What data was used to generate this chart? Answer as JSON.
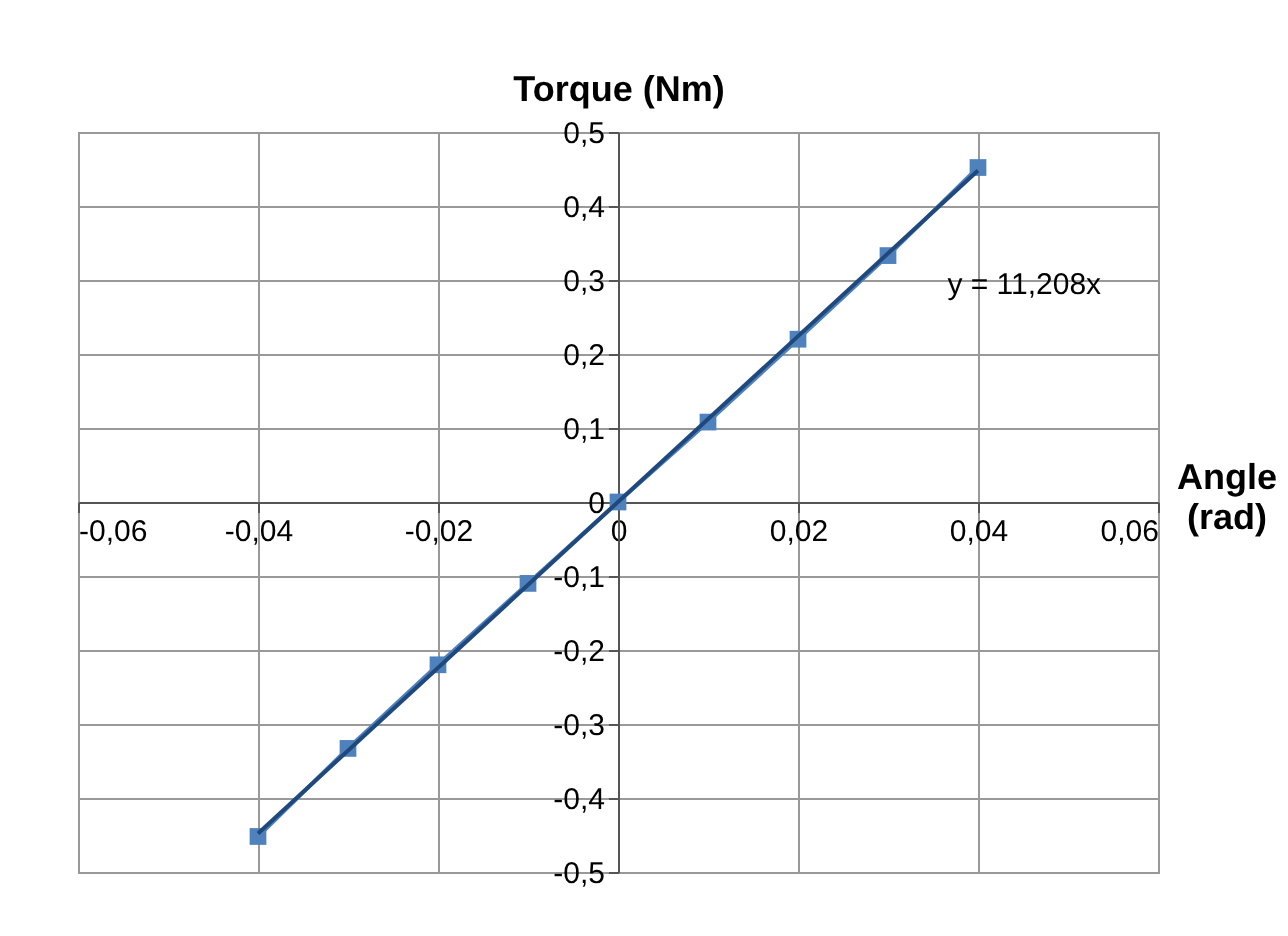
{
  "chart_data": {
    "type": "line",
    "xlabel": "Angle (rad)",
    "ylabel": "Torque (Nm)",
    "x": [
      -0.04,
      -0.03,
      -0.02,
      -0.01,
      0,
      0.01,
      0.02,
      0.03,
      0.04
    ],
    "series": [
      {
        "color": "#4f81bd",
        "marker": "square",
        "values": [
          -0.452,
          -0.333,
          -0.22,
          -0.11,
          0,
          0.108,
          0.22,
          0.333,
          0.452
        ]
      },
      {
        "color": "#1f497d",
        "marker": "none",
        "x": [
          -0.04,
          0.04
        ],
        "values": [
          -0.448,
          0.448
        ]
      }
    ],
    "annotations": [
      "y = 11,208x"
    ],
    "xlim": [
      -0.06,
      0.06
    ],
    "xticks": [
      {
        "value": -0.06,
        "label": "-0,06"
      },
      {
        "value": -0.04,
        "label": "-0,04"
      },
      {
        "value": -0.02,
        "label": "-0,02"
      },
      0,
      {
        "value": 0.02,
        "label": "0,02"
      },
      {
        "value": 0.04,
        "label": "0,04"
      },
      {
        "value": 0.06,
        "label": "0,06"
      }
    ],
    "ylim": [
      -0.5,
      0.5
    ],
    "yticks": [
      {
        "value": -0.5,
        "label": "-0,5"
      },
      {
        "value": -0.4,
        "label": "-0,4"
      },
      {
        "value": -0.3,
        "label": "-0,3"
      },
      {
        "value": -0.2,
        "label": "-0,2"
      },
      {
        "value": -0.1,
        "label": "-0,1"
      },
      0,
      {
        "value": 0.1,
        "label": "0,1"
      },
      {
        "value": 0.2,
        "label": "0,2"
      },
      {
        "value": 0.3,
        "label": "0,3"
      },
      {
        "value": 0.4,
        "label": "0,4"
      },
      {
        "value": 0.5,
        "label": "0,5"
      }
    ],
    "grid": true
  }
}
